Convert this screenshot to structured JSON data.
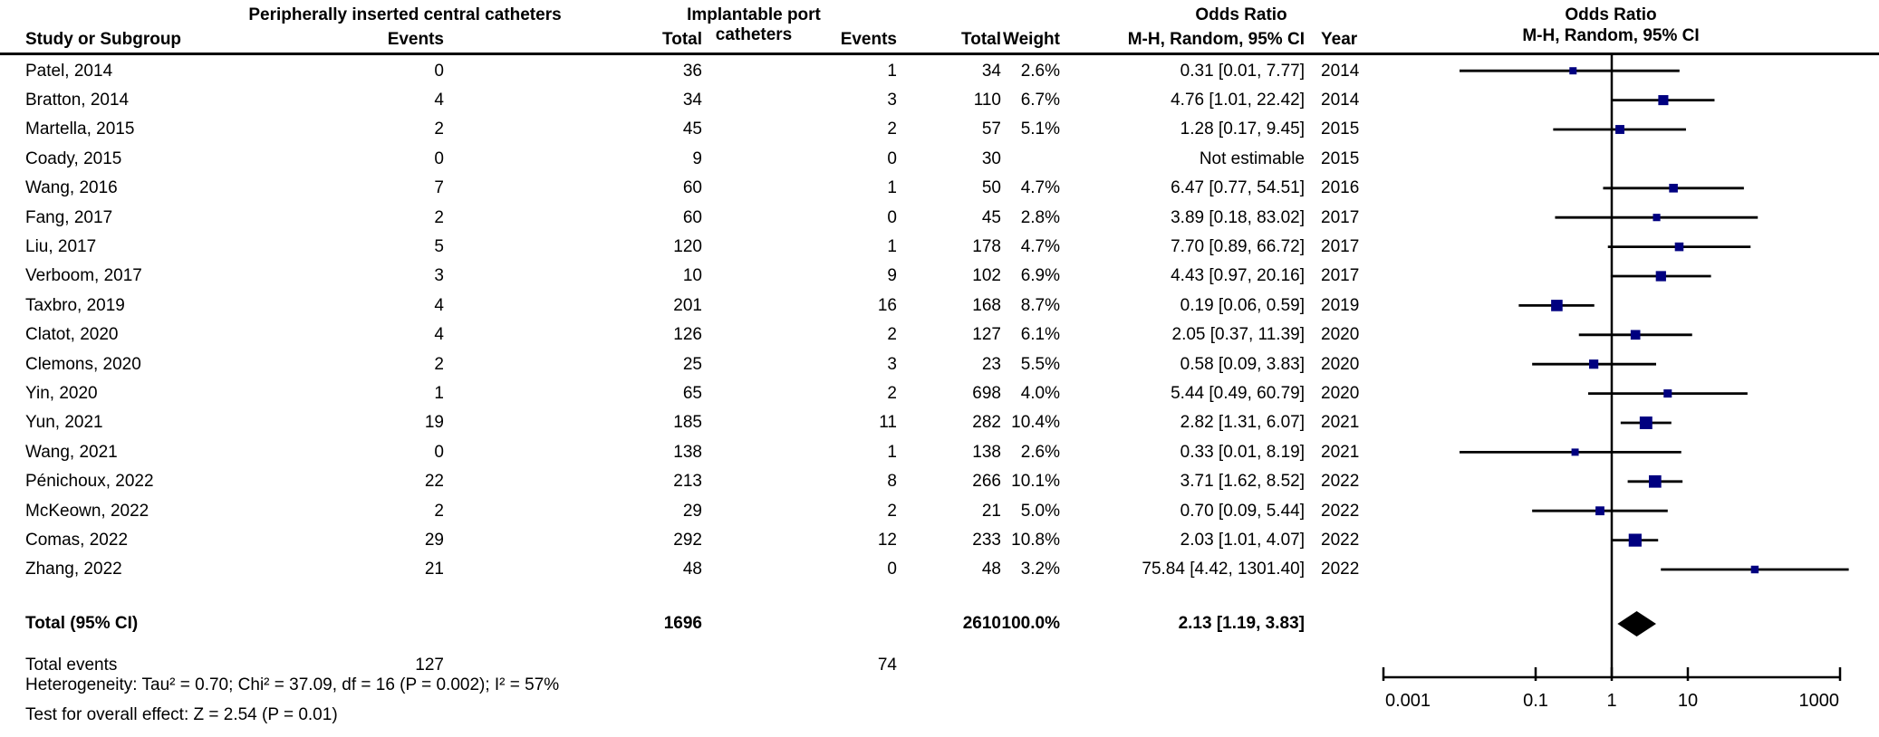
{
  "colors": {
    "marker": "#000080",
    "line": "#000000",
    "diamond": "#000000",
    "background": "#ffffff",
    "text": "#000000"
  },
  "header": {
    "group1": "Peripherally inserted central catheters",
    "group2": "Implantable port catheters",
    "or_label_left": "Odds Ratio",
    "or_label_right": "Odds Ratio",
    "col_study": "Study or Subgroup",
    "col_events1": "Events",
    "col_total1": "Total",
    "col_events2": "Events",
    "col_total2": "Total",
    "col_weight": "Weight",
    "col_mh_left": "M-H, Random, 95% CI",
    "col_year": "Year",
    "col_mh_right": "M-H, Random, 95% CI"
  },
  "chart_data": {
    "type": "forest",
    "x_scale": "log10",
    "xlim": [
      0.001,
      1000
    ],
    "axis_ticks": [
      0.001,
      0.1,
      1,
      10,
      1000
    ],
    "axis_tick_labels": [
      "0.001",
      "0.1",
      "1",
      "10",
      "1000"
    ],
    "effect_measure": "Odds Ratio, M-H, Random, 95% CI",
    "studies": [
      {
        "name": "Patel, 2014",
        "picc_events": 0,
        "picc_total": 36,
        "port_events": 1,
        "port_total": 34,
        "weight": "2.6%",
        "weight_value": 2.6,
        "or_ci_text": "0.31 [0.01, 7.77]",
        "year": "2014",
        "or": 0.31,
        "ci_low": 0.01,
        "ci_high": 7.77,
        "estimable": true
      },
      {
        "name": "Bratton, 2014",
        "picc_events": 4,
        "picc_total": 34,
        "port_events": 3,
        "port_total": 110,
        "weight": "6.7%",
        "weight_value": 6.7,
        "or_ci_text": "4.76 [1.01, 22.42]",
        "year": "2014",
        "or": 4.76,
        "ci_low": 1.01,
        "ci_high": 22.42,
        "estimable": true
      },
      {
        "name": "Martella, 2015",
        "picc_events": 2,
        "picc_total": 45,
        "port_events": 2,
        "port_total": 57,
        "weight": "5.1%",
        "weight_value": 5.1,
        "or_ci_text": "1.28 [0.17, 9.45]",
        "year": "2015",
        "or": 1.28,
        "ci_low": 0.17,
        "ci_high": 9.45,
        "estimable": true
      },
      {
        "name": "Coady, 2015",
        "picc_events": 0,
        "picc_total": 9,
        "port_events": 0,
        "port_total": 30,
        "weight": "",
        "weight_value": 0,
        "or_ci_text": "Not estimable",
        "year": "2015",
        "or": null,
        "ci_low": null,
        "ci_high": null,
        "estimable": false
      },
      {
        "name": "Wang, 2016",
        "picc_events": 7,
        "picc_total": 60,
        "port_events": 1,
        "port_total": 50,
        "weight": "4.7%",
        "weight_value": 4.7,
        "or_ci_text": "6.47 [0.77, 54.51]",
        "year": "2016",
        "or": 6.47,
        "ci_low": 0.77,
        "ci_high": 54.51,
        "estimable": true
      },
      {
        "name": "Fang, 2017",
        "picc_events": 2,
        "picc_total": 60,
        "port_events": 0,
        "port_total": 45,
        "weight": "2.8%",
        "weight_value": 2.8,
        "or_ci_text": "3.89 [0.18, 83.02]",
        "year": "2017",
        "or": 3.89,
        "ci_low": 0.18,
        "ci_high": 83.02,
        "estimable": true
      },
      {
        "name": "Liu, 2017",
        "picc_events": 5,
        "picc_total": 120,
        "port_events": 1,
        "port_total": 178,
        "weight": "4.7%",
        "weight_value": 4.7,
        "or_ci_text": "7.70 [0.89, 66.72]",
        "year": "2017",
        "or": 7.7,
        "ci_low": 0.89,
        "ci_high": 66.72,
        "estimable": true
      },
      {
        "name": "Verboom, 2017",
        "picc_events": 3,
        "picc_total": 10,
        "port_events": 9,
        "port_total": 102,
        "weight": "6.9%",
        "weight_value": 6.9,
        "or_ci_text": "4.43 [0.97, 20.16]",
        "year": "2017",
        "or": 4.43,
        "ci_low": 0.97,
        "ci_high": 20.16,
        "estimable": true
      },
      {
        "name": "Taxbro, 2019",
        "picc_events": 4,
        "picc_total": 201,
        "port_events": 16,
        "port_total": 168,
        "weight": "8.7%",
        "weight_value": 8.7,
        "or_ci_text": "0.19 [0.06, 0.59]",
        "year": "2019",
        "or": 0.19,
        "ci_low": 0.06,
        "ci_high": 0.59,
        "estimable": true
      },
      {
        "name": "Clatot, 2020",
        "picc_events": 4,
        "picc_total": 126,
        "port_events": 2,
        "port_total": 127,
        "weight": "6.1%",
        "weight_value": 6.1,
        "or_ci_text": "2.05 [0.37, 11.39]",
        "year": "2020",
        "or": 2.05,
        "ci_low": 0.37,
        "ci_high": 11.39,
        "estimable": true
      },
      {
        "name": "Clemons, 2020",
        "picc_events": 2,
        "picc_total": 25,
        "port_events": 3,
        "port_total": 23,
        "weight": "5.5%",
        "weight_value": 5.5,
        "or_ci_text": "0.58 [0.09, 3.83]",
        "year": "2020",
        "or": 0.58,
        "ci_low": 0.09,
        "ci_high": 3.83,
        "estimable": true
      },
      {
        "name": "Yin, 2020",
        "picc_events": 1,
        "picc_total": 65,
        "port_events": 2,
        "port_total": 698,
        "weight": "4.0%",
        "weight_value": 4.0,
        "or_ci_text": "5.44 [0.49, 60.79]",
        "year": "2020",
        "or": 5.44,
        "ci_low": 0.49,
        "ci_high": 60.79,
        "estimable": true
      },
      {
        "name": "Yun, 2021",
        "picc_events": 19,
        "picc_total": 185,
        "port_events": 11,
        "port_total": 282,
        "weight": "10.4%",
        "weight_value": 10.4,
        "or_ci_text": "2.82 [1.31, 6.07]",
        "year": "2021",
        "or": 2.82,
        "ci_low": 1.31,
        "ci_high": 6.07,
        "estimable": true
      },
      {
        "name": "Wang, 2021",
        "picc_events": 0,
        "picc_total": 138,
        "port_events": 1,
        "port_total": 138,
        "weight": "2.6%",
        "weight_value": 2.6,
        "or_ci_text": "0.33 [0.01, 8.19]",
        "year": "2021",
        "or": 0.33,
        "ci_low": 0.01,
        "ci_high": 8.19,
        "estimable": true
      },
      {
        "name": "Pénichoux, 2022",
        "picc_events": 22,
        "picc_total": 213,
        "port_events": 8,
        "port_total": 266,
        "weight": "10.1%",
        "weight_value": 10.1,
        "or_ci_text": "3.71 [1.62, 8.52]",
        "year": "2022",
        "or": 3.71,
        "ci_low": 1.62,
        "ci_high": 8.52,
        "estimable": true
      },
      {
        "name": "McKeown, 2022",
        "picc_events": 2,
        "picc_total": 29,
        "port_events": 2,
        "port_total": 21,
        "weight": "5.0%",
        "weight_value": 5.0,
        "or_ci_text": "0.70 [0.09, 5.44]",
        "year": "2022",
        "or": 0.7,
        "ci_low": 0.09,
        "ci_high": 5.44,
        "estimable": true
      },
      {
        "name": "Comas, 2022",
        "picc_events": 29,
        "picc_total": 292,
        "port_events": 12,
        "port_total": 233,
        "weight": "10.8%",
        "weight_value": 10.8,
        "or_ci_text": "2.03 [1.01, 4.07]",
        "year": "2022",
        "or": 2.03,
        "ci_low": 1.01,
        "ci_high": 4.07,
        "estimable": true
      },
      {
        "name": "Zhang, 2022",
        "picc_events": 21,
        "picc_total": 48,
        "port_events": 0,
        "port_total": 48,
        "weight": "3.2%",
        "weight_value": 3.2,
        "or_ci_text": "75.84 [4.42, 1301.40]",
        "year": "2022",
        "or": 75.84,
        "ci_low": 4.42,
        "ci_high": 1301.4,
        "estimable": true
      }
    ],
    "total": {
      "label": "Total (95% CI)",
      "picc_total": 1696,
      "port_total": 2610,
      "weight": "100.0%",
      "or_ci_text": "2.13 [1.19, 3.83]",
      "or": 2.13,
      "ci_low": 1.19,
      "ci_high": 3.83
    },
    "total_events": {
      "label": "Total events",
      "picc": 127,
      "port": 74
    },
    "heterogeneity": "Heterogeneity: Tau² = 0.70; Chi² = 37.09, df = 16 (P = 0.002); I² = 57%",
    "overall_effect": "Test for overall effect: Z = 2.54 (P = 0.01)"
  }
}
